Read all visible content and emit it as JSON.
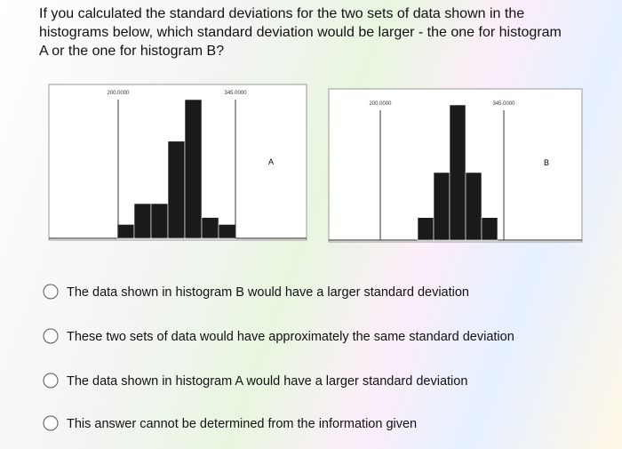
{
  "question": [
    "If you calculated the standard deviations for the two sets of data shown in the",
    "histograms below, which standard deviation would be larger - the one for histogram",
    "A or the one for histogram B?"
  ],
  "chart_data": [
    {
      "type": "bar",
      "title": "A",
      "values": [
        2,
        5,
        5,
        14,
        20,
        3,
        2
      ],
      "color": "#1a1a1a",
      "annotations": [
        "200.0000",
        "345.0000"
      ]
    },
    {
      "type": "bar",
      "title": "B",
      "values": [
        3,
        9,
        18,
        9,
        3
      ],
      "color": "#1a1a1a",
      "annotations": [
        "200.0000",
        "345.0000"
      ]
    }
  ],
  "options": [
    "The data shown in histogram B would have a larger standard deviation",
    "These two sets of data would have approximately the same standard deviation",
    "The data shown in histogram A would have a larger standard deviation",
    "This answer cannot be determined from the information given"
  ]
}
